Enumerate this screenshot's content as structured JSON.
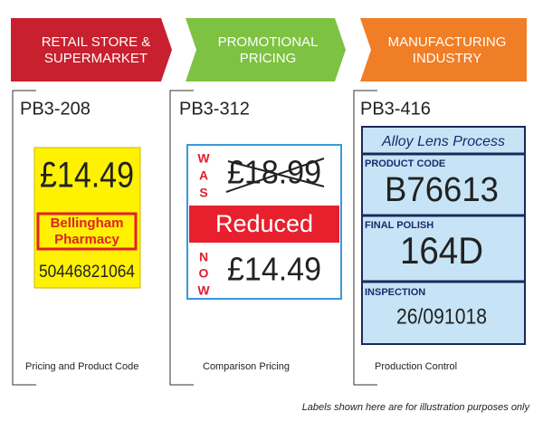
{
  "columns": [
    {
      "banner": [
        "RETAIL STORE &",
        "SUPERMARKET"
      ],
      "code": "PB3-208",
      "label": {
        "price": "£14.49",
        "store": [
          "Bellingham",
          "Pharmacy"
        ],
        "barcode": "50446821064"
      },
      "caption": "Pricing and Product Code"
    },
    {
      "banner": [
        "PROMOTIONAL",
        "PRICING"
      ],
      "code": "PB3-312",
      "label": {
        "was": "WAS",
        "old_price": "£18.99",
        "banner": "Reduced",
        "now": "NOW",
        "new_price": "£14.49"
      },
      "caption": "Comparison Pricing"
    },
    {
      "banner": [
        "MANUFACTURING",
        "INDUSTRY"
      ],
      "code": "PB3-416",
      "label": {
        "header": "Alloy Lens Process",
        "fields": [
          {
            "name": "PRODUCT CODE",
            "value": "B76613"
          },
          {
            "name": "FINAL POLISH",
            "value": "164D"
          },
          {
            "name": "INSPECTION",
            "value": "26/091018"
          }
        ]
      },
      "caption": "Production Control"
    }
  ],
  "footnote": "Labels shown here are for illustration purposes only"
}
